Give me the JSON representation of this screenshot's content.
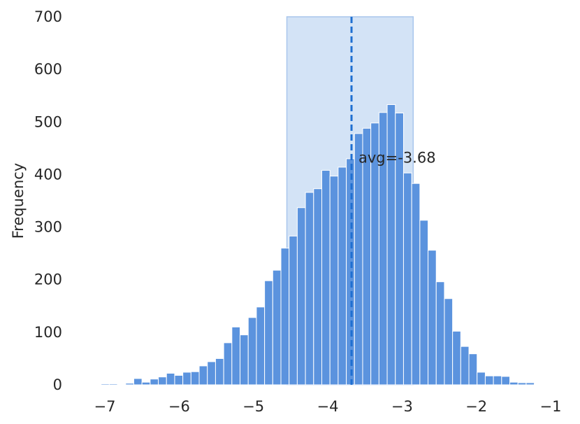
{
  "chart_data": {
    "type": "bar",
    "title": "",
    "xlabel": "",
    "ylabel": "Frequency",
    "xlim": [
      -7.1,
      -1.0
    ],
    "ylim": [
      0,
      700
    ],
    "grid": false,
    "bin_start": -7.05,
    "bin_width": 0.11,
    "values": [
      2,
      2,
      1,
      3,
      12,
      5,
      11,
      15,
      22,
      18,
      24,
      25,
      36,
      44,
      50,
      80,
      110,
      95,
      128,
      148,
      198,
      218,
      260,
      283,
      337,
      366,
      373,
      408,
      397,
      414,
      430,
      478,
      488,
      498,
      518,
      533,
      517,
      403,
      383,
      313,
      256,
      196,
      164,
      102,
      73,
      59,
      24,
      17,
      17,
      16,
      5,
      4,
      4,
      1
    ],
    "bar_color": "#5b93de",
    "highlight_span": {
      "x0": -4.55,
      "x1": -2.85,
      "color": "#d3e3f6"
    },
    "mean_line": {
      "x": -3.68,
      "color": "#1f6fd1"
    },
    "annotation": {
      "text": "avg=-3.68",
      "x": -3.68,
      "y": 432
    },
    "x_ticks": [
      -7,
      -6,
      -5,
      -4,
      -3,
      -2,
      -1
    ],
    "x_tick_labels": [
      "−7",
      "−6",
      "−5",
      "−4",
      "−3",
      "−2",
      "−1"
    ],
    "y_ticks": [
      0,
      100,
      200,
      300,
      400,
      500,
      600,
      700
    ],
    "y_tick_labels": [
      "0",
      "100",
      "200",
      "300",
      "400",
      "500",
      "600",
      "700"
    ]
  }
}
